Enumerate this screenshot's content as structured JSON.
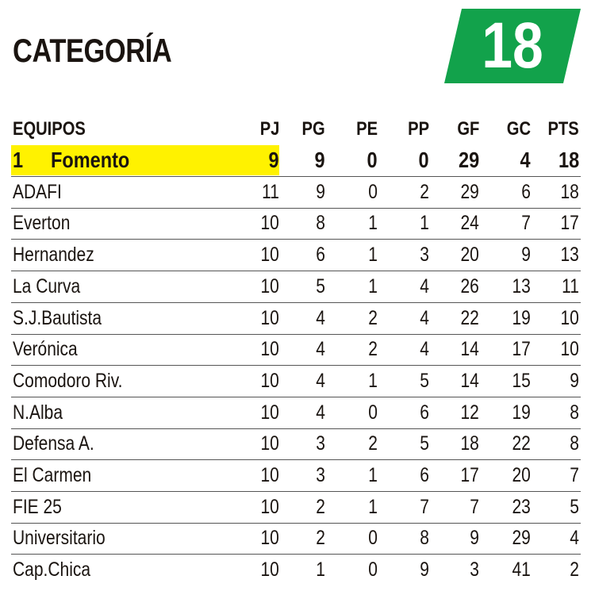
{
  "title": "CATEGORÍA",
  "category_badge": {
    "value": "18",
    "color": "#12a24b"
  },
  "highlight_color": "#fff200",
  "table": {
    "headers": [
      "EQUIPOS",
      "PJ",
      "PG",
      "PE",
      "PP",
      "GF",
      "GC",
      "PTS"
    ],
    "rows": [
      {
        "pos": "1",
        "team": "Fomento",
        "pj": "9",
        "pg": "9",
        "pe": "0",
        "pp": "0",
        "gf": "29",
        "gc": "4",
        "pts": "18"
      },
      {
        "team": "ADAFI",
        "pj": "11",
        "pg": "9",
        "pe": "0",
        "pp": "2",
        "gf": "29",
        "gc": "6",
        "pts": "18"
      },
      {
        "team": "Everton",
        "pj": "10",
        "pg": "8",
        "pe": "1",
        "pp": "1",
        "gf": "24",
        "gc": "7",
        "pts": "17"
      },
      {
        "team": "Hernandez",
        "pj": "10",
        "pg": "6",
        "pe": "1",
        "pp": "3",
        "gf": "20",
        "gc": "9",
        "pts": "13"
      },
      {
        "team": "La Curva",
        "pj": "10",
        "pg": "5",
        "pe": "1",
        "pp": "4",
        "gf": "26",
        "gc": "13",
        "pts": "11"
      },
      {
        "team": "S.J.Bautista",
        "pj": "10",
        "pg": "4",
        "pe": "2",
        "pp": "4",
        "gf": "22",
        "gc": "19",
        "pts": "10"
      },
      {
        "team": "Verónica",
        "pj": "10",
        "pg": "4",
        "pe": "2",
        "pp": "4",
        "gf": "14",
        "gc": "17",
        "pts": "10"
      },
      {
        "team": "Comodoro Riv.",
        "pj": "10",
        "pg": "4",
        "pe": "1",
        "pp": "5",
        "gf": "14",
        "gc": "15",
        "pts": "9"
      },
      {
        "team": "N.Alba",
        "pj": "10",
        "pg": "4",
        "pe": "0",
        "pp": "6",
        "gf": "12",
        "gc": "19",
        "pts": "8"
      },
      {
        "team": "Defensa A.",
        "pj": "10",
        "pg": "3",
        "pe": "2",
        "pp": "5",
        "gf": "18",
        "gc": "22",
        "pts": "8"
      },
      {
        "team": "El Carmen",
        "pj": "10",
        "pg": "3",
        "pe": "1",
        "pp": "6",
        "gf": "17",
        "gc": "20",
        "pts": "7"
      },
      {
        "team": "FIE 25",
        "pj": "10",
        "pg": "2",
        "pe": "1",
        "pp": "7",
        "gf": "7",
        "gc": "23",
        "pts": "5"
      },
      {
        "team": "Universitario",
        "pj": "10",
        "pg": "2",
        "pe": "0",
        "pp": "8",
        "gf": "9",
        "gc": "29",
        "pts": "4"
      },
      {
        "team": "Cap.Chica",
        "pj": "10",
        "pg": "1",
        "pe": "0",
        "pp": "9",
        "gf": "3",
        "gc": "41",
        "pts": "2"
      }
    ]
  }
}
